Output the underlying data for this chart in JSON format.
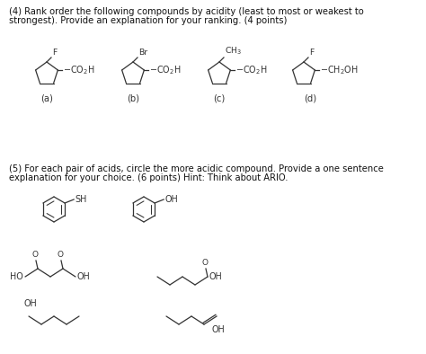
{
  "background_color": "#ffffff",
  "figsize": [
    4.74,
    3.94
  ],
  "dpi": 100,
  "question4_text_line1": "(4) Rank order the following compounds by acidity (least to most or weakest to",
  "question4_text_line2": "strongest). Provide an explanation for your ranking. (4 points)",
  "question5_text_line1": "(5) For each pair of acids, circle the more acidic compound. Provide a one sentence",
  "question5_text_line2": "explanation for your choice. (6 points) Hint: Think about ARIO.",
  "text_fontsize": 7.2,
  "structure_color": "#333333"
}
